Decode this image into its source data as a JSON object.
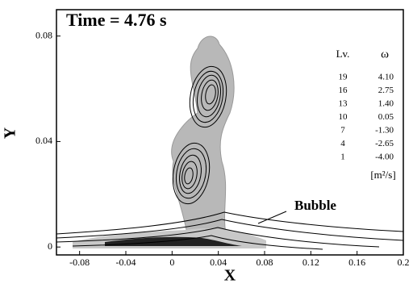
{
  "chart_data": {
    "type": "contour",
    "annotations": {
      "time": "Time = 4.76 s",
      "bubble": "Bubble"
    },
    "x_label": "X",
    "y_label": "Y",
    "xlim": [
      -0.1,
      0.2
    ],
    "xticks": [
      -0.08,
      -0.04,
      0,
      0.04,
      0.08,
      0.12,
      0.16,
      0.2
    ],
    "ylim": [
      -0.003,
      0.09
    ],
    "yticks": [
      0,
      0.04,
      0.08
    ],
    "legend": {
      "level_header": "Lv.",
      "value_header": "ω",
      "unit": "[m²/s]",
      "levels": [
        19,
        16,
        13,
        10,
        7,
        4,
        1
      ],
      "values": [
        "4.10",
        "2.75",
        "1.40",
        "0.05",
        "-1.30",
        "-2.65",
        "-4.00"
      ]
    }
  }
}
